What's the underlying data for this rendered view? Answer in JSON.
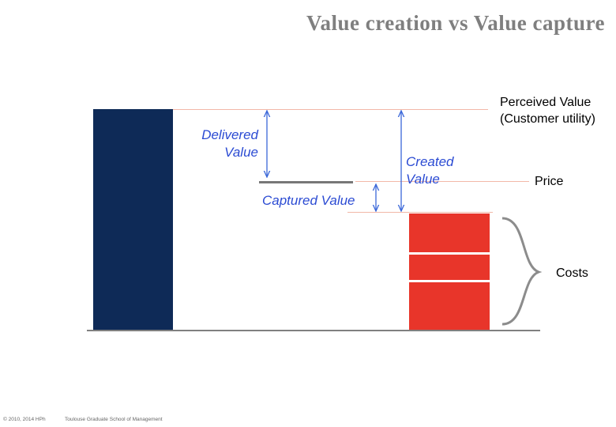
{
  "slide": {
    "title": "Value creation vs Value capture",
    "labels": {
      "perceived_value_line1": "Perceived Value",
      "perceived_value_line2": "(Customer utility)",
      "price": "Price",
      "costs": "Costs",
      "delivered_value_line1": "Delivered",
      "delivered_value_line2": "Value",
      "created_value_line1": "Created",
      "created_value_line2": "Value",
      "captured_value": "Captured Value"
    },
    "footer": {
      "copyright": "© 2010, 2014 HPh",
      "school": "Toulouse Graduate School of Management"
    }
  },
  "colors": {
    "perceived_bar": "#0e2a57",
    "cost_blocks": "#e8352a",
    "arrows": "#3a67d9",
    "annotation_text": "#2b4bd3",
    "guide_lines": "#f2b8a8",
    "price_line": "#777777",
    "baseline": "#808080",
    "brace": "#8c8c8c",
    "title": "#7f7f7f"
  }
}
